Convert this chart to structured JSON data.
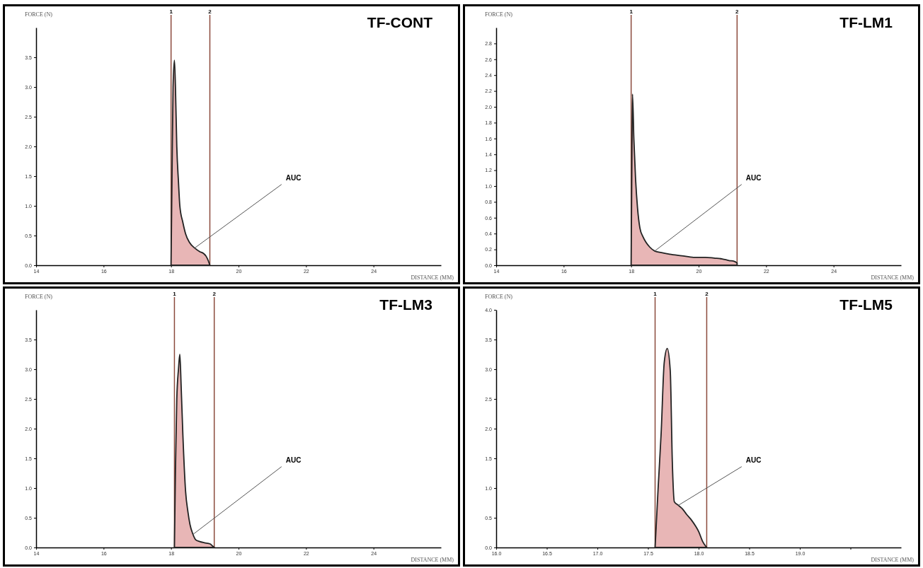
{
  "chart_data": [
    {
      "type": "area",
      "title": "TF-CONT",
      "xlabel": "DISTANCE (MM)",
      "ylabel": "FORCE (N)",
      "color": "#e4a9a9",
      "xlim": [
        14,
        26
      ],
      "ylim": [
        0,
        4
      ],
      "x": [
        18.0,
        18.03,
        18.06,
        18.1,
        18.13,
        18.17,
        18.22,
        18.26,
        18.35,
        18.43,
        18.55,
        18.7,
        18.85,
        18.96,
        19.04,
        19.1,
        19.15
      ],
      "values": [
        0,
        1.6,
        3.0,
        3.45,
        3.0,
        2.0,
        1.4,
        1.0,
        0.72,
        0.53,
        0.38,
        0.29,
        0.23,
        0.2,
        0.15,
        0.08,
        0
      ],
      "xticks": [
        14,
        16,
        18,
        20,
        22,
        24
      ],
      "yticks": [
        {
          "value": 0,
          "label": "0.0"
        },
        {
          "value": 0.5,
          "label": "0.5"
        },
        {
          "value": 1,
          "label": "1.0"
        },
        {
          "value": 1.5,
          "label": "1.5"
        },
        {
          "value": 2,
          "label": "2.0"
        },
        {
          "value": 2.5,
          "label": "2.5"
        },
        {
          "value": 3,
          "label": "3.0"
        },
        {
          "value": 3.5,
          "label": "3.5"
        }
      ],
      "ref_lines": [
        {
          "axis": "x",
          "value": 18.0,
          "color": "#8b4a3c"
        },
        {
          "axis": "x",
          "value": 19.15,
          "color": "#8b4a3c"
        }
      ],
      "annotations": [
        {
          "text": "1",
          "x": 18.0
        },
        {
          "text": "2",
          "x": 19.15
        },
        {
          "text": "AUC",
          "x": 18.7,
          "y": 0.29
        }
      ]
    },
    {
      "type": "area",
      "title": "TF-LM1",
      "xlabel": "DISTANCE (MM)",
      "ylabel": "FORCE (N)",
      "color": "#e4a9a9",
      "xlim": [
        14,
        26
      ],
      "ylim": [
        0,
        3
      ],
      "x": [
        18.0,
        18.02,
        18.04,
        18.08,
        18.13,
        18.19,
        18.26,
        18.35,
        18.44,
        18.55,
        18.7,
        18.9,
        19.14,
        19.5,
        19.85,
        20.2,
        20.46,
        20.7,
        20.9,
        21.05,
        21.14
      ],
      "values": [
        0,
        1.2,
        2.16,
        1.6,
        1.1,
        0.72,
        0.47,
        0.36,
        0.29,
        0.23,
        0.18,
        0.16,
        0.14,
        0.12,
        0.1,
        0.1,
        0.09,
        0.08,
        0.06,
        0.05,
        0.03
      ],
      "xticks": [
        14,
        16,
        18,
        20,
        22,
        24
      ],
      "yticks": [
        {
          "value": 0,
          "label": "0.0"
        },
        {
          "value": 0.2,
          "label": "0.2"
        },
        {
          "value": 0.4,
          "label": "0.4"
        },
        {
          "value": 0.6,
          "label": "0.6"
        },
        {
          "value": 0.8,
          "label": "0.8"
        },
        {
          "value": 1,
          "label": "1.0"
        },
        {
          "value": 1.2,
          "label": "1.2"
        },
        {
          "value": 1.4,
          "label": "1.4"
        },
        {
          "value": 1.6,
          "label": "1.6"
        },
        {
          "value": 1.8,
          "label": "1.8"
        },
        {
          "value": 2,
          "label": "2.0"
        },
        {
          "value": 2.2,
          "label": "2.2"
        },
        {
          "value": 2.4,
          "label": "2.4"
        },
        {
          "value": 2.6,
          "label": "2.6"
        },
        {
          "value": 2.8,
          "label": "2.8"
        }
      ],
      "ref_lines": [
        {
          "axis": "x",
          "value": 18.0,
          "color": "#8b4a3c"
        },
        {
          "axis": "x",
          "value": 21.14,
          "color": "#8b4a3c"
        }
      ],
      "annotations": [
        {
          "text": "1",
          "x": 18.0
        },
        {
          "text": "2",
          "x": 21.14
        },
        {
          "text": "AUC",
          "x": 18.7,
          "y": 0.18
        }
      ]
    },
    {
      "type": "area",
      "title": "TF-LM3",
      "xlabel": "DISTANCE (MM)",
      "ylabel": "FORCE (N)",
      "color": "#e4a9a9",
      "xlim": [
        14,
        26
      ],
      "ylim": [
        0,
        4
      ],
      "x": [
        18.1,
        18.13,
        18.17,
        18.22,
        18.26,
        18.3,
        18.35,
        18.43,
        18.5,
        18.56,
        18.65,
        18.73,
        18.85,
        18.99,
        19.16,
        19.22,
        19.28
      ],
      "values": [
        0,
        1.3,
        2.5,
        3.0,
        3.25,
        2.7,
        1.9,
        0.95,
        0.6,
        0.39,
        0.22,
        0.13,
        0.1,
        0.08,
        0.06,
        0.03,
        0
      ],
      "xticks": [
        14,
        16,
        18,
        20,
        22,
        24
      ],
      "yticks": [
        {
          "value": 0,
          "label": "0.0"
        },
        {
          "value": 0.5,
          "label": "0.5"
        },
        {
          "value": 1,
          "label": "1.0"
        },
        {
          "value": 1.5,
          "label": "1.5"
        },
        {
          "value": 2,
          "label": "2.0"
        },
        {
          "value": 2.5,
          "label": "2.5"
        },
        {
          "value": 3,
          "label": "3.0"
        },
        {
          "value": 3.5,
          "label": "3.5"
        }
      ],
      "ref_lines": [
        {
          "axis": "x",
          "value": 18.1,
          "color": "#8b4a3c"
        },
        {
          "axis": "x",
          "value": 19.28,
          "color": "#8b4a3c"
        }
      ],
      "annotations": [
        {
          "text": "1",
          "x": 18.1
        },
        {
          "text": "2",
          "x": 19.28
        },
        {
          "text": "AUC",
          "x": 18.65,
          "y": 0.22
        }
      ]
    },
    {
      "type": "area",
      "title": "TF-LM5",
      "xlabel": "DISTANCE (MM)",
      "ylabel": "FORCE (N)",
      "color": "#e4a9a9",
      "xlim": [
        16,
        20
      ],
      "ylim": [
        0,
        4
      ],
      "x": [
        17.57,
        17.6,
        17.63,
        17.66,
        17.69,
        17.72,
        17.74,
        17.76,
        17.8,
        17.84,
        17.88,
        17.93,
        17.97,
        18.0,
        18.04,
        18.08
      ],
      "values": [
        0,
        1.0,
        1.93,
        3.11,
        3.35,
        2.97,
        1.45,
        0.77,
        0.71,
        0.65,
        0.56,
        0.46,
        0.36,
        0.27,
        0.1,
        0
      ],
      "xticks": [
        {
          "value": 16,
          "label": "16.0"
        },
        {
          "value": 16.5,
          "label": "16.5"
        },
        {
          "value": 17,
          "label": "17.0"
        },
        {
          "value": 17.5,
          "label": "17.5"
        },
        {
          "value": 18,
          "label": "18.0"
        },
        {
          "value": 18.5,
          "label": "18.5"
        },
        {
          "value": 19,
          "label": "19.0"
        },
        {
          "value": 19.5,
          "label": null
        }
      ],
      "yticks": [
        {
          "value": 0,
          "label": "0.0"
        },
        {
          "value": 0.5,
          "label": "0.5"
        },
        {
          "value": 1,
          "label": "1.0"
        },
        {
          "value": 1.5,
          "label": "1.5"
        },
        {
          "value": 2,
          "label": "2.0"
        },
        {
          "value": 2.5,
          "label": "2.5"
        },
        {
          "value": 3,
          "label": "3.0"
        },
        {
          "value": 3.5,
          "label": "3.5"
        },
        {
          "value": 4,
          "label": "4.0"
        }
      ],
      "ref_lines": [
        {
          "axis": "x",
          "value": 17.57,
          "color": "#8b4a3c"
        },
        {
          "axis": "x",
          "value": 18.08,
          "color": "#8b4a3c"
        }
      ],
      "annotations": [
        {
          "text": "1",
          "x": 17.57
        },
        {
          "text": "2",
          "x": 18.08
        },
        {
          "text": "AUC",
          "x": 17.8,
          "y": 0.71
        }
      ]
    }
  ]
}
